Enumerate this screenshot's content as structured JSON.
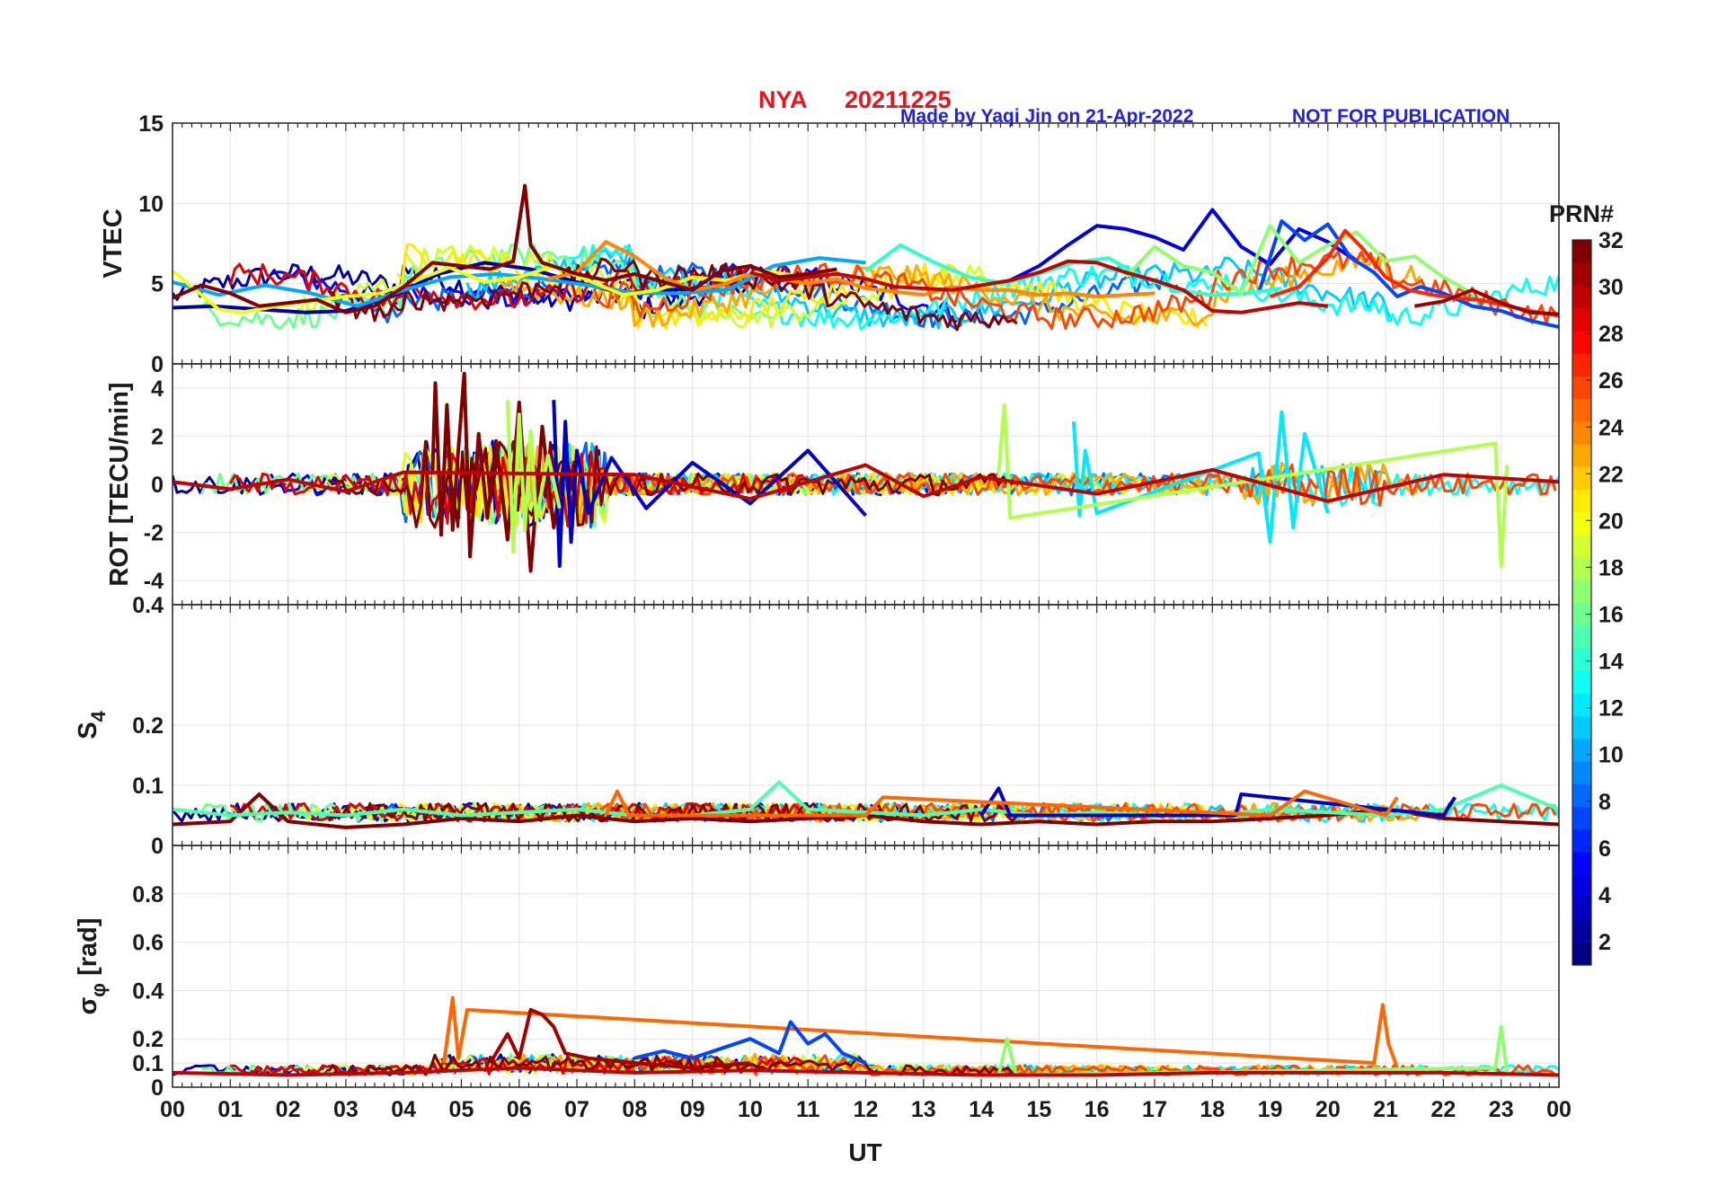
{
  "header": {
    "station": "NYA",
    "date": "20211225",
    "made_by": "Made by Yaqi Jin on 21-Apr-2022",
    "notice": "NOT FOR PUBLICATION"
  },
  "colors": {
    "station_title": "#e8141b",
    "made_by": "#1f1fe6",
    "notice": "#1f1fe6",
    "grid": "#e3e3e3",
    "axis": "#262626"
  },
  "x_axis": {
    "label": "UT",
    "ticks": [
      "00",
      "01",
      "02",
      "03",
      "04",
      "05",
      "06",
      "07",
      "08",
      "09",
      "10",
      "11",
      "12",
      "13",
      "14",
      "15",
      "16",
      "17",
      "18",
      "19",
      "20",
      "21",
      "22",
      "23",
      "00"
    ],
    "range": [
      0,
      24
    ]
  },
  "colorbar": {
    "title": "PRN#",
    "range": [
      1,
      32
    ],
    "ticks": [
      "2",
      "4",
      "6",
      "8",
      "10",
      "12",
      "14",
      "16",
      "18",
      "20",
      "22",
      "24",
      "26",
      "28",
      "30",
      "32"
    ],
    "colormap": "jet"
  },
  "panels": [
    {
      "key": "vtec",
      "ylabel": "VTEC",
      "ylim": [
        0,
        15
      ],
      "yticks": [
        "0",
        "5",
        "10",
        "15"
      ],
      "ytick_values": [
        0,
        5,
        10,
        15
      ]
    },
    {
      "key": "rot",
      "ylabel": "ROT [TECU/min]",
      "ylim": [
        -5,
        5
      ],
      "yticks": [
        "-4",
        "-2",
        "0",
        "2",
        "4"
      ],
      "ytick_values": [
        -4,
        -2,
        0,
        2,
        4
      ]
    },
    {
      "key": "s4",
      "ylabel": "S",
      "ylabel_sub": "4",
      "ylim": [
        0,
        0.4
      ],
      "yticks": [
        "0",
        "0.1",
        "0.2",
        "0.4"
      ],
      "ytick_values": [
        0,
        0.1,
        0.2,
        0.4
      ]
    },
    {
      "key": "sigma",
      "ylabel": "σ",
      "ylabel_sub": "φ",
      "ylabel_unit": " [rad]",
      "ylim": [
        0,
        1
      ],
      "yticks": [
        "0",
        "0.1",
        "0.2",
        "0.4",
        "0.6",
        "0.8"
      ],
      "ytick_values": [
        0,
        0.1,
        0.2,
        0.4,
        0.6,
        0.8
      ]
    }
  ],
  "chart_data": [
    {
      "type": "line",
      "panel": "VTEC",
      "ylabel": "VTEC",
      "xlabel": "UT",
      "xlim": [
        0,
        24
      ],
      "ylim": [
        0,
        15
      ],
      "color_by": "PRN#",
      "series": [
        {
          "prn": 2,
          "x": [
            0,
            0.7,
            1.5,
            2.3,
            3,
            3.8,
            4.6,
            5.4,
            6.2,
            7,
            7.8,
            8.6,
            9.4
          ],
          "y": [
            3.5,
            3.6,
            3.4,
            3.2,
            3.3,
            4.2,
            5.6,
            6.3,
            5.9,
            5.1,
            4.4,
            4.6,
            4.8
          ]
        },
        {
          "prn": 4,
          "x": [
            14.5,
            15,
            15.5,
            16,
            16.5,
            17,
            17.5,
            18,
            18.5,
            19,
            19.5,
            20,
            20.5
          ],
          "y": [
            5.2,
            6.1,
            7.4,
            8.6,
            8.4,
            7.9,
            7.1,
            9.6,
            7.3,
            6.2,
            8.4,
            7.6,
            6.4
          ]
        },
        {
          "prn": 7,
          "x": [
            18.8,
            19.2,
            19.6,
            20,
            20.4,
            20.8,
            21.2,
            21.6,
            22,
            22.5,
            23,
            23.5,
            24
          ],
          "y": [
            4.4,
            8.9,
            7.7,
            8.7,
            6.6,
            5.7,
            4.2,
            4.8,
            4.4,
            3.6,
            3.3,
            2.7,
            2.3
          ]
        },
        {
          "prn": 10,
          "x": [
            0,
            0.8,
            1.6,
            2.4,
            3.2,
            4,
            4.8,
            5.6,
            6.4,
            7.2,
            8,
            8.8,
            9.6,
            10.4,
            11.2,
            12
          ],
          "y": [
            5.1,
            4.3,
            4.9,
            4.4,
            3.6,
            4.6,
            5.4,
            5.6,
            5.3,
            4.9,
            4.4,
            4.4,
            4.6,
            6.1,
            6.6,
            6.3
          ]
        },
        {
          "prn": 14,
          "x": [
            12,
            12.6,
            13.2,
            13.8,
            14.4,
            15,
            15.6,
            16.2,
            16.8,
            17.4,
            18,
            18.6,
            19.2
          ],
          "y": [
            5.8,
            7.4,
            6.3,
            5.4,
            5.0,
            5.6,
            6.3,
            6.6,
            5.4,
            4.6,
            4.3,
            4.4,
            4.7
          ]
        },
        {
          "prn": 17,
          "x": [
            16.5,
            17,
            17.5,
            18,
            18.5,
            19,
            19.5,
            20,
            20.5,
            21,
            21.5,
            22,
            22.5
          ],
          "y": [
            5.4,
            7.3,
            6.1,
            5.7,
            4.4,
            8.6,
            6.3,
            7.4,
            8.2,
            6.4,
            6.7,
            5.4,
            4.4
          ]
        },
        {
          "prn": 20,
          "x": [
            0,
            0.4,
            0.8,
            1.2,
            1.8,
            2.4,
            3,
            3.6,
            4.2,
            4.8,
            5.4,
            6,
            6.6,
            7.2,
            7.8,
            8.4,
            9,
            9.6,
            10.2,
            10.8
          ],
          "y": [
            5.8,
            4.6,
            3.4,
            3.2,
            3.6,
            3.9,
            4.2,
            4.4,
            5.2,
            6.0,
            5.1,
            5.4,
            6.1,
            5.2,
            4.3,
            4.6,
            5.4,
            5.2,
            5.8,
            5.5
          ]
        },
        {
          "prn": 24,
          "x": [
            6.5,
            7,
            7.5,
            8,
            8.5,
            9,
            9.5,
            10,
            10.5,
            11,
            11.5,
            12,
            12.5,
            13,
            13.5,
            14,
            14.5,
            15,
            15.5,
            16,
            16.5,
            17
          ],
          "y": [
            5.3,
            5.7,
            7.6,
            6.7,
            5.4,
            4.6,
            4.9,
            5.6,
            5.3,
            5.0,
            5.3,
            4.7,
            4.5,
            4.3,
            4.8,
            4.6,
            4.6,
            4.3,
            4.4,
            4.2,
            4.3,
            4.4
          ]
        },
        {
          "prn": 27,
          "x": [
            19,
            19.5,
            20,
            20.3,
            20.6,
            21,
            21.4,
            21.8,
            22.2,
            22.6,
            23,
            23.5,
            24
          ],
          "y": [
            4.2,
            4.8,
            6.6,
            8.3,
            7.2,
            5.4,
            4.6,
            4.3,
            4.1,
            4.0,
            3.7,
            3.3,
            3.0
          ]
        },
        {
          "prn": 30,
          "x": [
            10,
            10.5,
            11,
            11.5,
            12,
            12.5,
            13,
            13.5,
            14,
            14.5,
            15,
            15.5,
            16,
            16.5,
            17,
            17.5,
            18,
            18.5,
            19,
            19.5,
            20
          ],
          "y": [
            5.7,
            5.2,
            5.4,
            5.6,
            5.3,
            4.8,
            4.7,
            4.6,
            4.9,
            5.2,
            5.7,
            6.4,
            6.3,
            5.7,
            5.2,
            4.6,
            3.3,
            3.2,
            3.5,
            3.8,
            3.6
          ]
        },
        {
          "prn": 32,
          "x": [
            0,
            0.5,
            1,
            1.5,
            2,
            2.5,
            3,
            3.5,
            4,
            4.5,
            5,
            5.5,
            5.9,
            6.1,
            6.2,
            6.4,
            7,
            7.5,
            8,
            8.5,
            9,
            9.5,
            10,
            10.5,
            11,
            11.5
          ],
          "y": [
            4.1,
            4.9,
            4.4,
            3.6,
            3.8,
            4.0,
            3.2,
            3.6,
            4.8,
            6.3,
            6.1,
            5.9,
            6.4,
            11.1,
            7.4,
            6.3,
            5.6,
            5.2,
            5.6,
            5.1,
            4.6,
            5.8,
            6.1,
            5.4,
            5.6,
            5.9
          ]
        },
        {
          "prn": 31,
          "x": [
            21.5,
            22,
            22.5,
            23,
            23.5,
            24
          ],
          "y": [
            3.6,
            3.9,
            4.6,
            3.8,
            3.2,
            3.1
          ]
        }
      ]
    },
    {
      "type": "line",
      "panel": "ROT",
      "ylabel": "ROT [TECU/min]",
      "xlabel": "UT",
      "xlim": [
        0,
        24
      ],
      "ylim": [
        -5,
        5
      ],
      "color_by": "PRN#",
      "series": [
        {
          "prn": 32,
          "x": [
            4.5,
            4.55,
            4.65,
            4.75,
            4.85,
            4.95,
            5.05,
            5.15,
            5.3,
            5.45,
            5.6,
            5.8,
            6.0,
            6.2,
            6.4,
            6.6,
            6.8,
            7.0
          ],
          "y": [
            0.4,
            4.2,
            -2.1,
            3.3,
            -1.9,
            1.5,
            4.6,
            -3.0,
            2.1,
            -1.4,
            1.8,
            -2.3,
            3.4,
            -3.6,
            2.4,
            -1.8,
            1.3,
            -0.9
          ]
        },
        {
          "prn": 3,
          "x": [
            6.6,
            6.7,
            6.8,
            6.9,
            7.0,
            7.2,
            7.6,
            8.2,
            9.0,
            10.0,
            11.0,
            12.0
          ],
          "y": [
            3.5,
            -3.4,
            2.6,
            -2.4,
            1.4,
            -1.2,
            1.1,
            -1.0,
            0.9,
            -0.8,
            1.4,
            -1.3
          ]
        },
        {
          "prn": 18,
          "x": [
            5.8,
            5.9,
            6.0,
            6.1,
            6.2,
            6.3,
            6.5,
            6.7
          ],
          "y": [
            3.5,
            -2.8,
            2.9,
            -1.9,
            2.2,
            -1.5,
            1.2,
            -1.0
          ]
        },
        {
          "prn": 12,
          "x": [
            15.6,
            15.7,
            15.8,
            16.0,
            18.8,
            19.0,
            19.2,
            19.4,
            19.6,
            20.0
          ],
          "y": [
            2.6,
            -1.3,
            1.4,
            -1.2,
            1.3,
            -2.4,
            3.0,
            -1.8,
            2.1,
            -1.2
          ]
        },
        {
          "prn": 18,
          "x": [
            14.3,
            14.4,
            14.5,
            22.9,
            23.0,
            23.1
          ],
          "y": [
            0.5,
            3.3,
            -1.4,
            1.7,
            -3.4,
            0.8
          ]
        },
        {
          "prn": 30,
          "x": [
            0,
            1,
            2,
            3,
            4,
            8,
            10,
            12,
            13,
            14,
            16,
            18,
            20,
            22,
            24
          ],
          "y": [
            0.1,
            -0.2,
            0.2,
            -0.3,
            0.5,
            0.4,
            -0.6,
            0.8,
            -0.5,
            0.3,
            -0.4,
            0.6,
            -0.7,
            0.4,
            0.1
          ]
        }
      ]
    },
    {
      "type": "line",
      "panel": "S4",
      "ylabel": "S4",
      "xlabel": "UT",
      "xlim": [
        0,
        24
      ],
      "ylim": [
        0,
        0.4
      ],
      "color_by": "PRN#",
      "series": [
        {
          "prn": 32,
          "x": [
            0,
            1,
            1.5,
            2,
            3,
            4,
            5,
            6,
            7,
            8,
            9,
            10,
            11,
            12,
            13,
            14,
            15,
            16,
            17,
            18,
            19,
            20,
            21,
            22,
            23,
            24
          ],
          "y": [
            0.035,
            0.04,
            0.085,
            0.04,
            0.03,
            0.035,
            0.045,
            0.04,
            0.05,
            0.04,
            0.045,
            0.04,
            0.045,
            0.05,
            0.04,
            0.035,
            0.04,
            0.035,
            0.04,
            0.04,
            0.045,
            0.05,
            0.06,
            0.045,
            0.04,
            0.035
          ]
        },
        {
          "prn": 15,
          "x": [
            0,
            1,
            2,
            3,
            4,
            5,
            6,
            7,
            8,
            9,
            10,
            10.5,
            11,
            12,
            13,
            14,
            15,
            16,
            17,
            18,
            19,
            20,
            21,
            22,
            23,
            24
          ],
          "y": [
            0.06,
            0.05,
            0.055,
            0.05,
            0.06,
            0.05,
            0.055,
            0.06,
            0.05,
            0.05,
            0.06,
            0.105,
            0.06,
            0.055,
            0.05,
            0.06,
            0.05,
            0.055,
            0.05,
            0.05,
            0.06,
            0.055,
            0.05,
            0.06,
            0.1,
            0.06
          ]
        },
        {
          "prn": 3,
          "x": [
            14,
            14.3,
            14.5,
            18.4,
            18.5,
            22,
            22.2
          ],
          "y": [
            0.05,
            0.095,
            0.05,
            0.05,
            0.085,
            0.05,
            0.08
          ]
        },
        {
          "prn": 25,
          "x": [
            7.5,
            7.7,
            7.9,
            12,
            12.3,
            19,
            19.6,
            21,
            21.2
          ],
          "y": [
            0.05,
            0.09,
            0.05,
            0.05,
            0.08,
            0.05,
            0.09,
            0.05,
            0.08
          ]
        }
      ]
    },
    {
      "type": "line",
      "panel": "sigma_phi",
      "ylabel": "σφ [rad]",
      "xlabel": "UT",
      "xlim": [
        0,
        24
      ],
      "ylim": [
        0,
        1
      ],
      "color_by": "PRN#",
      "series": [
        {
          "prn": 25,
          "x": [
            4.7,
            4.85,
            4.95,
            5.1,
            20.8,
            20.95,
            21.05,
            21.2
          ],
          "y": [
            0.1,
            0.37,
            0.12,
            0.32,
            0.1,
            0.34,
            0.18,
            0.08
          ]
        },
        {
          "prn": 31,
          "x": [
            5.5,
            5.8,
            6.0,
            6.2,
            6.4,
            6.6,
            6.8,
            7.2,
            8.0,
            9.0,
            10.0
          ],
          "y": [
            0.1,
            0.22,
            0.12,
            0.32,
            0.3,
            0.25,
            0.14,
            0.12,
            0.1,
            0.08,
            0.1
          ]
        },
        {
          "prn": 7,
          "x": [
            8.0,
            8.5,
            9.0,
            10.0,
            10.5,
            10.7,
            11.0,
            11.3,
            11.6,
            12.0
          ],
          "y": [
            0.12,
            0.15,
            0.12,
            0.2,
            0.14,
            0.27,
            0.18,
            0.22,
            0.14,
            0.1
          ]
        },
        {
          "prn": 17,
          "x": [
            14.3,
            14.45,
            14.6,
            22.9,
            23.0,
            23.1
          ],
          "y": [
            0.05,
            0.2,
            0.05,
            0.08,
            0.25,
            0.06
          ]
        },
        {
          "prn": 30,
          "x": [
            0,
            2,
            4,
            6,
            8,
            10,
            12,
            14,
            16,
            18,
            20,
            22,
            24
          ],
          "y": [
            0.06,
            0.05,
            0.06,
            0.08,
            0.06,
            0.07,
            0.06,
            0.05,
            0.05,
            0.06,
            0.06,
            0.06,
            0.05
          ]
        }
      ]
    }
  ]
}
